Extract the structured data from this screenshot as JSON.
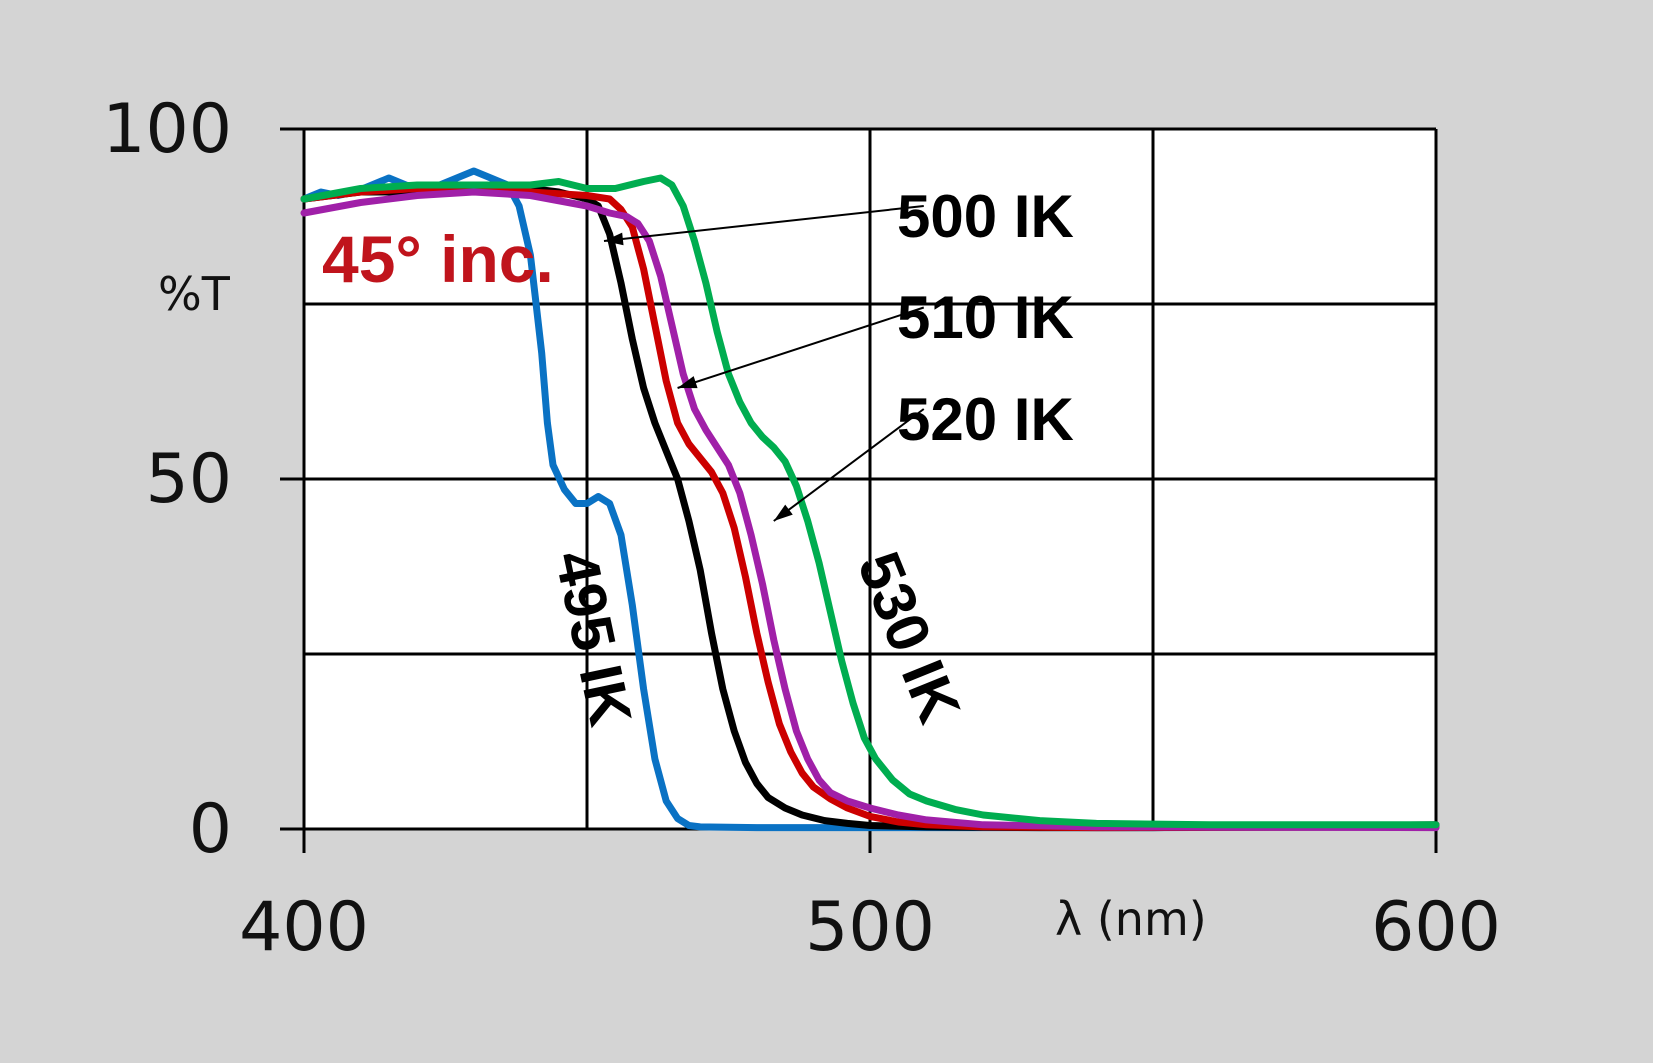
{
  "colors": {
    "background": "#d4d4d4",
    "plot": "#ffffff",
    "grid": "#000000",
    "condition": "#c0141c"
  },
  "chart_data": {
    "type": "line",
    "title": "",
    "xlabel": "λ (nm)",
    "ylabel": "%T",
    "xlim": [
      400,
      600
    ],
    "ylim": [
      0,
      100
    ],
    "x_ticks": [
      400,
      500,
      600
    ],
    "y_ticks": [
      0,
      50,
      100
    ],
    "x_tick_labels": [
      "400",
      "500",
      "600"
    ],
    "y_tick_labels": [
      "0",
      "50",
      "100"
    ],
    "grid": true,
    "legend": "none",
    "annotation": "45° inc.",
    "series": [
      {
        "name": "495 IK",
        "color": "#0a72c4",
        "points": [
          [
            400,
            90
          ],
          [
            403,
            91
          ],
          [
            406,
            90.5
          ],
          [
            409,
            91
          ],
          [
            412,
            92
          ],
          [
            415,
            93
          ],
          [
            418,
            92
          ],
          [
            421,
            91.5
          ],
          [
            424,
            92
          ],
          [
            427,
            93
          ],
          [
            430,
            94
          ],
          [
            433,
            93
          ],
          [
            436,
            92
          ],
          [
            438,
            89
          ],
          [
            440,
            82
          ],
          [
            441,
            75
          ],
          [
            442,
            68
          ],
          [
            443,
            58
          ],
          [
            444,
            52
          ],
          [
            446,
            48.5
          ],
          [
            448,
            46.5
          ],
          [
            450,
            46.5
          ],
          [
            452,
            47.5
          ],
          [
            454,
            46.5
          ],
          [
            456,
            42
          ],
          [
            458,
            32
          ],
          [
            460,
            20
          ],
          [
            462,
            10
          ],
          [
            464,
            4
          ],
          [
            466,
            1.5
          ],
          [
            468,
            0.5
          ],
          [
            470,
            0.3
          ],
          [
            480,
            0.2
          ],
          [
            500,
            0.2
          ],
          [
            550,
            0.2
          ],
          [
            600,
            0.3
          ]
        ]
      },
      {
        "name": "500 IK",
        "color": "#000000",
        "points": [
          [
            400,
            90
          ],
          [
            410,
            91
          ],
          [
            420,
            91
          ],
          [
            430,
            91.5
          ],
          [
            440,
            91.5
          ],
          [
            445,
            91
          ],
          [
            450,
            90
          ],
          [
            452,
            89
          ],
          [
            454,
            85
          ],
          [
            456,
            78
          ],
          [
            458,
            70
          ],
          [
            460,
            63
          ],
          [
            462,
            58
          ],
          [
            464,
            54
          ],
          [
            466,
            50
          ],
          [
            468,
            44
          ],
          [
            470,
            37
          ],
          [
            472,
            28
          ],
          [
            474,
            20
          ],
          [
            476,
            14
          ],
          [
            478,
            9.5
          ],
          [
            480,
            6.5
          ],
          [
            482,
            4.5
          ],
          [
            485,
            3
          ],
          [
            488,
            2
          ],
          [
            492,
            1.2
          ],
          [
            496,
            0.8
          ],
          [
            500,
            0.5
          ],
          [
            510,
            0.3
          ],
          [
            530,
            0.2
          ],
          [
            550,
            0.2
          ],
          [
            600,
            0.6
          ]
        ]
      },
      {
        "name": "510 IK",
        "color": "#cc0000",
        "points": [
          [
            400,
            90
          ],
          [
            410,
            91
          ],
          [
            420,
            91.5
          ],
          [
            430,
            91.5
          ],
          [
            440,
            91
          ],
          [
            450,
            90.5
          ],
          [
            454,
            90
          ],
          [
            456,
            88.5
          ],
          [
            458,
            86
          ],
          [
            460,
            80
          ],
          [
            462,
            72
          ],
          [
            464,
            64
          ],
          [
            466,
            58
          ],
          [
            468,
            55
          ],
          [
            470,
            53
          ],
          [
            472,
            51
          ],
          [
            474,
            48
          ],
          [
            476,
            43
          ],
          [
            478,
            36
          ],
          [
            480,
            28
          ],
          [
            482,
            21
          ],
          [
            484,
            15
          ],
          [
            486,
            11
          ],
          [
            488,
            8
          ],
          [
            490,
            6
          ],
          [
            493,
            4.3
          ],
          [
            496,
            3
          ],
          [
            500,
            1.8
          ],
          [
            505,
            1
          ],
          [
            510,
            0.6
          ],
          [
            520,
            0.3
          ],
          [
            540,
            0.2
          ],
          [
            600,
            0.3
          ]
        ]
      },
      {
        "name": "520 IK",
        "color": "#a020a8",
        "points": [
          [
            400,
            88
          ],
          [
            410,
            89.5
          ],
          [
            420,
            90.5
          ],
          [
            430,
            91
          ],
          [
            440,
            90.5
          ],
          [
            450,
            89
          ],
          [
            454,
            88
          ],
          [
            457,
            87.5
          ],
          [
            459,
            86.5
          ],
          [
            461,
            84
          ],
          [
            463,
            79
          ],
          [
            465,
            72
          ],
          [
            467,
            65
          ],
          [
            469,
            60
          ],
          [
            471,
            57
          ],
          [
            473,
            54.5
          ],
          [
            475,
            52
          ],
          [
            477,
            48
          ],
          [
            479,
            42
          ],
          [
            481,
            35
          ],
          [
            483,
            27
          ],
          [
            485,
            20
          ],
          [
            487,
            14
          ],
          [
            489,
            10
          ],
          [
            491,
            7
          ],
          [
            493,
            5.2
          ],
          [
            496,
            4
          ],
          [
            500,
            3
          ],
          [
            505,
            2
          ],
          [
            510,
            1.3
          ],
          [
            520,
            0.6
          ],
          [
            540,
            0.3
          ],
          [
            600,
            0.2
          ]
        ]
      },
      {
        "name": "530 IK",
        "color": "#00ad50",
        "points": [
          [
            400,
            90
          ],
          [
            410,
            91.5
          ],
          [
            420,
            92
          ],
          [
            430,
            92
          ],
          [
            440,
            92
          ],
          [
            445,
            92.5
          ],
          [
            450,
            91.5
          ],
          [
            455,
            91.5
          ],
          [
            460,
            92.5
          ],
          [
            463,
            93
          ],
          [
            465,
            92
          ],
          [
            467,
            89
          ],
          [
            469,
            84
          ],
          [
            471,
            78
          ],
          [
            473,
            71
          ],
          [
            475,
            65
          ],
          [
            477,
            61
          ],
          [
            479,
            58
          ],
          [
            481,
            56
          ],
          [
            483,
            54.5
          ],
          [
            485,
            52.5
          ],
          [
            487,
            49
          ],
          [
            489,
            44
          ],
          [
            491,
            38
          ],
          [
            493,
            31
          ],
          [
            495,
            24
          ],
          [
            497,
            18
          ],
          [
            499,
            13
          ],
          [
            501,
            10
          ],
          [
            504,
            7
          ],
          [
            507,
            5
          ],
          [
            510,
            4
          ],
          [
            515,
            2.8
          ],
          [
            520,
            2
          ],
          [
            530,
            1.2
          ],
          [
            540,
            0.8
          ],
          [
            560,
            0.6
          ],
          [
            600,
            0.6
          ]
        ]
      }
    ],
    "labels": [
      {
        "text": "500 IK",
        "target_x": 453,
        "target_y": 84,
        "anchor_x": 509.5,
        "anchor_y": 89
      },
      {
        "text": "510 IK",
        "target_x": 466,
        "target_y": 63,
        "anchor_x": 509.5,
        "anchor_y": 74.5
      },
      {
        "text": "520 IK",
        "target_x": 483,
        "target_y": 44,
        "anchor_x": 509.5,
        "anchor_y": 60
      },
      {
        "text": "495 IK",
        "series": "495 IK"
      },
      {
        "text": "530 IK",
        "series": "530 IK"
      }
    ]
  }
}
